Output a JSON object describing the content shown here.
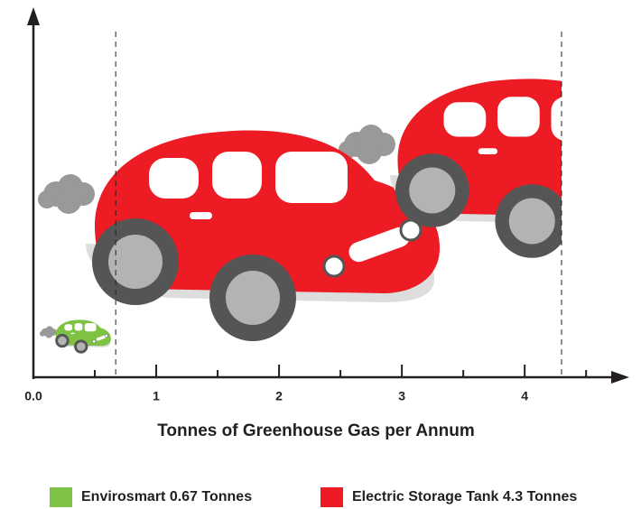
{
  "chart_data": {
    "type": "pictogram",
    "xlabel": "Tonnes of Greenhouse Gas per Annum",
    "xlim": [
      0,
      4.8
    ],
    "xticks": [
      {
        "value": 0,
        "label": "0.0"
      },
      1,
      2,
      3,
      4
    ],
    "minor_xticks": [
      0.5,
      1.5,
      2.5,
      3.5,
      4.5
    ],
    "series": [
      {
        "name": "Envirosmart 0.67 Tonnes",
        "color": "#7dc242",
        "values": [
          0.67
        ]
      },
      {
        "name": "Electric Storage Tank 4.3 Tonnes",
        "color": "#ed1c24",
        "values": [
          4.3
        ]
      }
    ]
  }
}
